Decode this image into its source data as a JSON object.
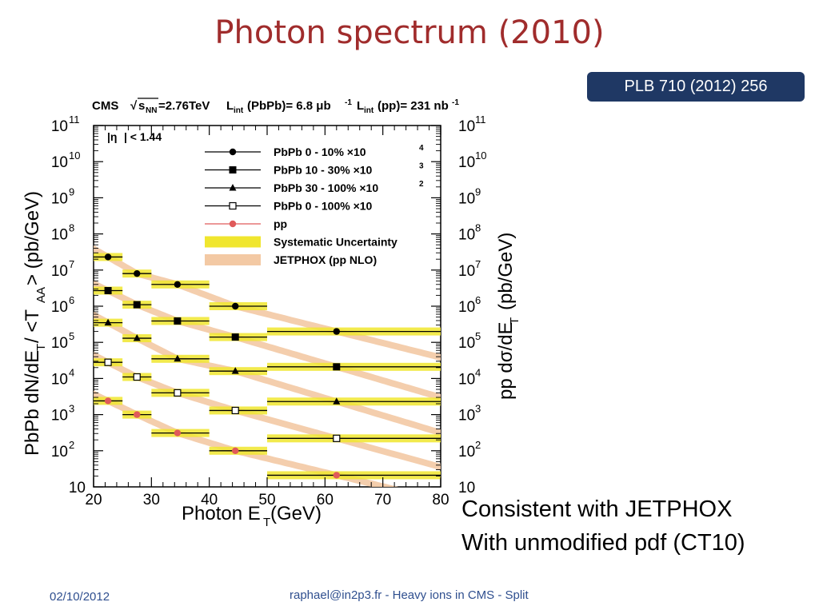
{
  "slide": {
    "title": "Photon spectrum (2010)",
    "reference": "PLB 710 (2012) 256",
    "caption_line1": "Consistent with JETPHOX",
    "caption_line2": "With unmodified pdf (CT10)",
    "footer_date": "02/10/2012",
    "footer_center": "raphael@in2p3.fr - Heavy ions in CMS - Split",
    "colors": {
      "title": "#a02c2c",
      "badge": "#1f3864",
      "footer": "#2f4f8f",
      "band_syst": "#f0e62e",
      "band_theory": "#f3c9a4",
      "pp_marker": "#e05a5a"
    }
  },
  "chart_data": {
    "type": "scatter",
    "header_cms": "CMS",
    "header_energy": "=2.76TeV",
    "header_lumi_pbpb": "(PbPb)= 6.8 μb",
    "header_lumi_pp": "(pp)= 231 nb",
    "eta_cut": "|η",
    "xlabel": "Photon E",
    "xlabel_sub": "T",
    "xlabel_unit": " (GeV)",
    "ylabel_left": "PbPb dN/dE",
    "ylabel_right": "pp dσ/dE",
    "y_scale": "log",
    "xlim": [
      20,
      80
    ],
    "ylim": [
      10,
      100000000000.0
    ],
    "x_ticks": [
      "20",
      "30",
      "40",
      "50",
      "60",
      "70",
      "80"
    ],
    "y_ticks": [
      "10",
      "10",
      "10",
      "10",
      "10",
      "10",
      "10",
      "10",
      "10",
      "10",
      "10"
    ],
    "y_tick_exps": [
      "",
      "2",
      "3",
      "4",
      "5",
      "6",
      "7",
      "8",
      "9",
      "10",
      "11"
    ],
    "bins": [
      [
        20,
        25
      ],
      [
        25,
        30
      ],
      [
        30,
        40
      ],
      [
        40,
        50
      ],
      [
        50,
        80
      ]
    ],
    "series": [
      {
        "name": "PbPb 0 - 10% ×10",
        "scale": "4",
        "marker": "circle",
        "x": [
          22.5,
          27.5,
          34.5,
          44.5,
          62
        ],
        "y": [
          23000000.0,
          8000000.0,
          4000000.0,
          1000000.0,
          200000.0
        ]
      },
      {
        "name": "PbPb 10 - 30% ×10",
        "scale": "3",
        "marker": "square",
        "x": [
          22.5,
          27.5,
          34.5,
          44.5,
          62
        ],
        "y": [
          2700000.0,
          1100000.0,
          390000.0,
          140000.0,
          21000.0
        ]
      },
      {
        "name": "PbPb 30 - 100% ×10",
        "scale": "2",
        "marker": "triangle",
        "x": [
          22.5,
          27.5,
          34.5,
          44.5,
          62
        ],
        "y": [
          350000.0,
          130000.0,
          35000.0,
          16000.0,
          2300.0
        ]
      },
      {
        "name": "PbPb 0 - 100% ×10",
        "scale": "",
        "marker": "open-square",
        "x": [
          22.5,
          27.5,
          34.5,
          44.5,
          62
        ],
        "y": [
          28000.0,
          11000.0,
          4000.0,
          1300.0,
          220.0
        ]
      },
      {
        "name": "pp",
        "scale": "",
        "marker": "pp-circle",
        "x": [
          22.5,
          27.5,
          34.5,
          44.5,
          62
        ],
        "y": [
          2400.0,
          1000.0,
          310.0,
          100.0,
          21.0
        ]
      }
    ],
    "legend_extra": [
      "Systematic Uncertainty",
      "JETPHOX (pp NLO)"
    ],
    "legend_position": "top-right"
  }
}
